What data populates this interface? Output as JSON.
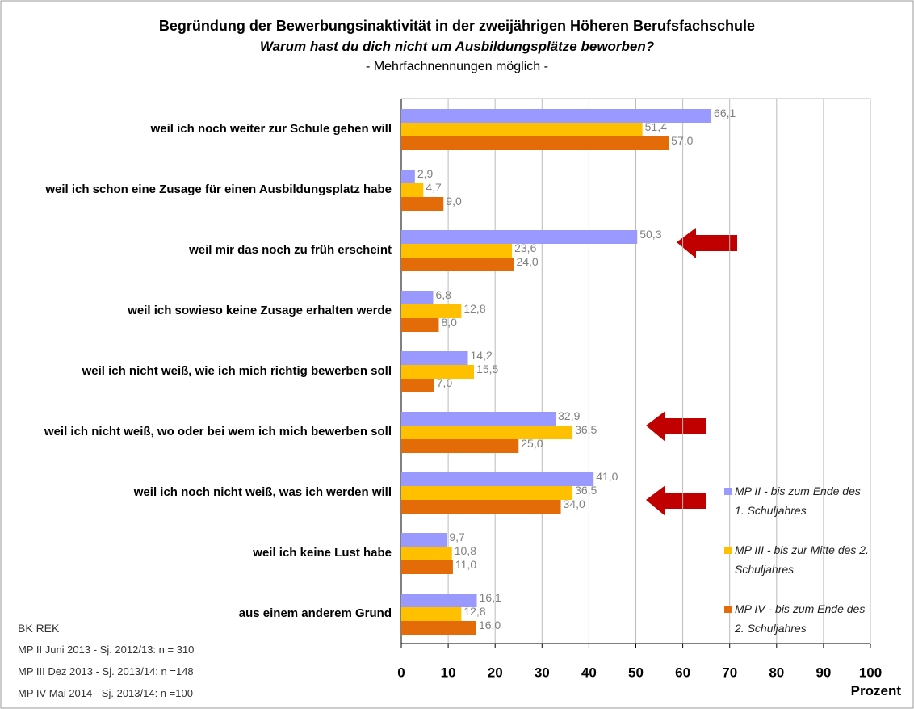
{
  "chart_data": {
    "type": "bar",
    "orientation": "horizontal",
    "title": "Begründung der Bewerbungsinaktivität in der zweijährigen Höheren Berufsfachschule",
    "subtitle": "Warum hast du dich nicht um Ausbildungsplätze beworben?",
    "note": "- Mehrfachnennungen möglich -",
    "x_label": "Prozent",
    "categories": [
      "weil ich noch weiter zur Schule gehen will",
      "weil ich schon eine Zusage für einen Ausbildungsplatz habe",
      "weil mir das noch zu früh erscheint",
      "weil ich sowieso keine Zusage erhalten werde",
      "weil ich nicht weiß, wie ich mich richtig bewerben soll",
      "weil ich nicht weiß, wo oder bei wem ich mich bewerben soll",
      "weil ich noch nicht weiß, was ich werden will",
      "weil ich keine Lust habe",
      "aus einem anderem Grund"
    ],
    "series": [
      {
        "name": "MP II - bis zum Ende des 1. Schuljahres",
        "color": "#9999ff",
        "values": [
          66.1,
          2.9,
          50.3,
          6.8,
          14.2,
          32.9,
          41.0,
          9.7,
          16.1
        ],
        "value_labels": [
          "66,1",
          "2,9",
          "50,3",
          "6,8",
          "14,2",
          "32,9",
          "41,0",
          "9,7",
          "16,1"
        ]
      },
      {
        "name": "MP III - bis zur Mitte des 2. Schuljahres",
        "color": "#ffc000",
        "values": [
          51.4,
          4.7,
          23.6,
          12.8,
          15.5,
          36.5,
          36.5,
          10.8,
          12.8
        ],
        "value_labels": [
          "51,4",
          "4,7",
          "23,6",
          "12,8",
          "15,5",
          "36,5",
          "36,5",
          "10,8",
          "12,8"
        ]
      },
      {
        "name": "MP IV - bis zum Ende des 2. Schuljahres",
        "color": "#e36c09",
        "values": [
          57.0,
          9.0,
          24.0,
          8.0,
          7.0,
          25.0,
          34.0,
          11.0,
          16.0
        ],
        "value_labels": [
          "57,0",
          "9,0",
          "24,0",
          "8,0",
          "7,0",
          "25,0",
          "34,0",
          "11,0",
          "16,0"
        ]
      }
    ],
    "xlim": [
      0,
      100
    ],
    "xticks": [
      0,
      10,
      20,
      30,
      40,
      50,
      60,
      70,
      80,
      90,
      100
    ],
    "grid": true,
    "source": "BK REK",
    "footnotes": [
      "MP II Juni 2013 - Sj. 2012/13: n = 310",
      "MP III Dez 2013 - Sj. 2013/14: n =148",
      "MP IV Mai 2014 - Sj. 2013/14: n =100"
    ]
  }
}
